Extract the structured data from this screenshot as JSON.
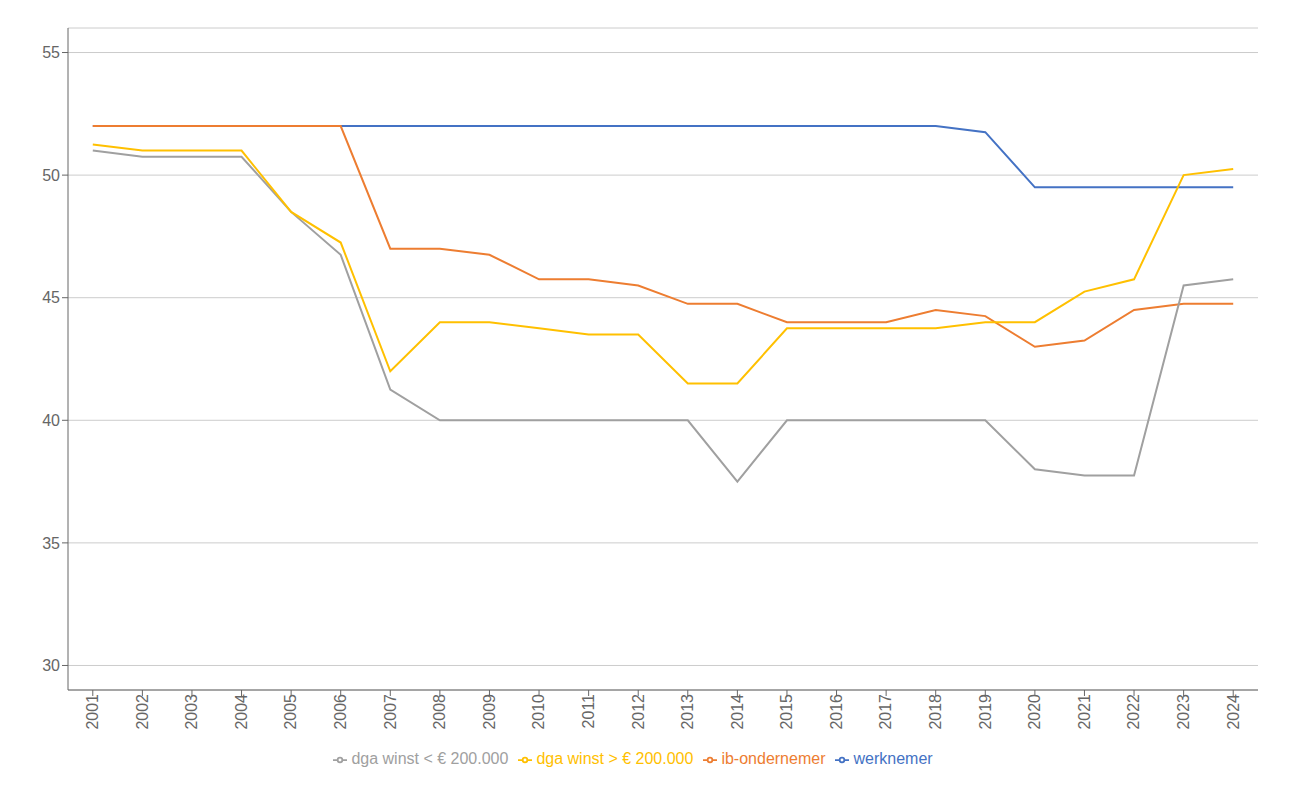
{
  "chart_data": {
    "type": "line",
    "x": [
      2001,
      2002,
      2003,
      2004,
      2005,
      2006,
      2007,
      2008,
      2009,
      2010,
      2011,
      2012,
      2013,
      2014,
      2015,
      2016,
      2017,
      2018,
      2019,
      2020,
      2021,
      2022,
      2023,
      2024
    ],
    "series": [
      {
        "name": "werknemer",
        "color": "#4472C4",
        "values": [
          52.0,
          52.0,
          52.0,
          52.0,
          52.0,
          52.0,
          52.0,
          52.0,
          52.0,
          52.0,
          52.0,
          52.0,
          52.0,
          52.0,
          52.0,
          52.0,
          52.0,
          52.0,
          51.75,
          49.5,
          49.5,
          49.5,
          49.5,
          49.5
        ]
      },
      {
        "name": "ib-ondernemer",
        "color": "#ED7D31",
        "values": [
          52.0,
          52.0,
          52.0,
          52.0,
          52.0,
          52.0,
          47.0,
          47.0,
          46.75,
          45.75,
          45.75,
          45.5,
          44.75,
          44.75,
          44.0,
          44.0,
          44.0,
          44.5,
          44.25,
          43.0,
          43.25,
          44.5,
          44.75,
          44.75
        ]
      },
      {
        "name": "dga winst < € 200.000",
        "color": "#A0A0A0",
        "values": [
          51.0,
          50.75,
          50.75,
          50.75,
          48.5,
          46.75,
          41.25,
          40.0,
          40.0,
          40.0,
          40.0,
          40.0,
          40.0,
          37.5,
          40.0,
          40.0,
          40.0,
          40.0,
          40.0,
          38.0,
          37.75,
          37.75,
          45.5,
          45.75
        ]
      },
      {
        "name": "dga winst > € 200.000",
        "color": "#FFC000",
        "values": [
          51.25,
          51.0,
          51.0,
          51.0,
          48.5,
          47.25,
          42.0,
          44.0,
          44.0,
          43.75,
          43.5,
          43.5,
          41.5,
          41.5,
          43.75,
          43.75,
          43.75,
          43.75,
          44.0,
          44.0,
          45.25,
          45.75,
          50.0,
          50.25
        ]
      }
    ],
    "xlim": [
      2000.5,
      2024.5
    ],
    "xticks": [
      2001,
      2002,
      2003,
      2004,
      2005,
      2006,
      2007,
      2008,
      2009,
      2010,
      2011,
      2012,
      2013,
      2014,
      2015,
      2016,
      2017,
      2018,
      2019,
      2020,
      2021,
      2022,
      2023,
      2024
    ],
    "ylim": [
      29,
      56
    ],
    "yticks": [
      30,
      35,
      40,
      45,
      50,
      55
    ],
    "grid": true,
    "legend": "bottom"
  }
}
